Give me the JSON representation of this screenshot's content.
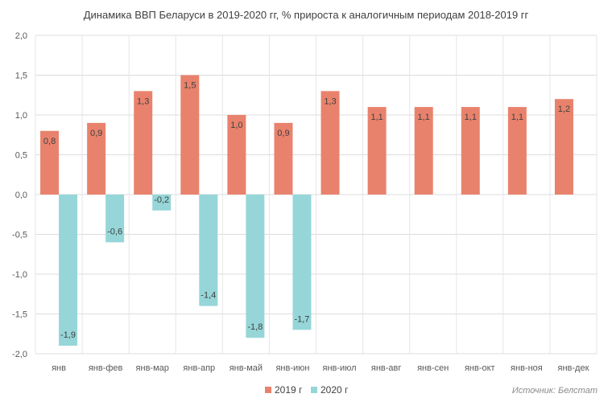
{
  "chart_data": {
    "type": "bar",
    "title": "Динамика ВВП Беларуси в 2019-2020 гг, % прироста к аналогичным периодам 2018-2019 гг",
    "categories": [
      "янв",
      "янв-фев",
      "янв-мар",
      "янв-апр",
      "янв-май",
      "янв-июн",
      "янв-июл",
      "янв-авг",
      "янв-сен",
      "янв-окт",
      "янв-ноя",
      "янв-дек"
    ],
    "series": [
      {
        "name": "2019 г",
        "color": "#E9826C",
        "values": [
          0.8,
          0.9,
          1.3,
          1.5,
          1.0,
          0.9,
          1.3,
          1.1,
          1.1,
          1.1,
          1.1,
          1.2
        ],
        "labels": [
          "0,8",
          "0,9",
          "1,3",
          "1,5",
          "1,0",
          "0,9",
          "1,3",
          "1,1",
          "1,1",
          "1,1",
          "1,1",
          "1,2"
        ]
      },
      {
        "name": "2020 г",
        "color": "#96D6D8",
        "values": [
          -1.9,
          -0.6,
          -0.2,
          -1.4,
          -1.8,
          -1.7,
          null,
          null,
          null,
          null,
          null,
          null
        ],
        "labels": [
          "-1,9",
          "-0,6",
          "-0,2",
          "-1,4",
          "-1,8",
          "-1,7",
          "",
          "",
          "",
          "",
          "",
          ""
        ]
      }
    ],
    "ylim": [
      -2.0,
      2.0
    ],
    "yticks": [
      2.0,
      1.5,
      1.0,
      0.5,
      0.0,
      -0.5,
      -1.0,
      -1.5,
      -2.0
    ],
    "ytick_labels": [
      "2,0",
      "1,5",
      "1,0",
      "0,5",
      "0,0",
      "-0,5",
      "-1,0",
      "-1,5",
      "-2,0"
    ],
    "grid": true,
    "legend": "bottom-center",
    "source": "Источник: Белстат"
  }
}
